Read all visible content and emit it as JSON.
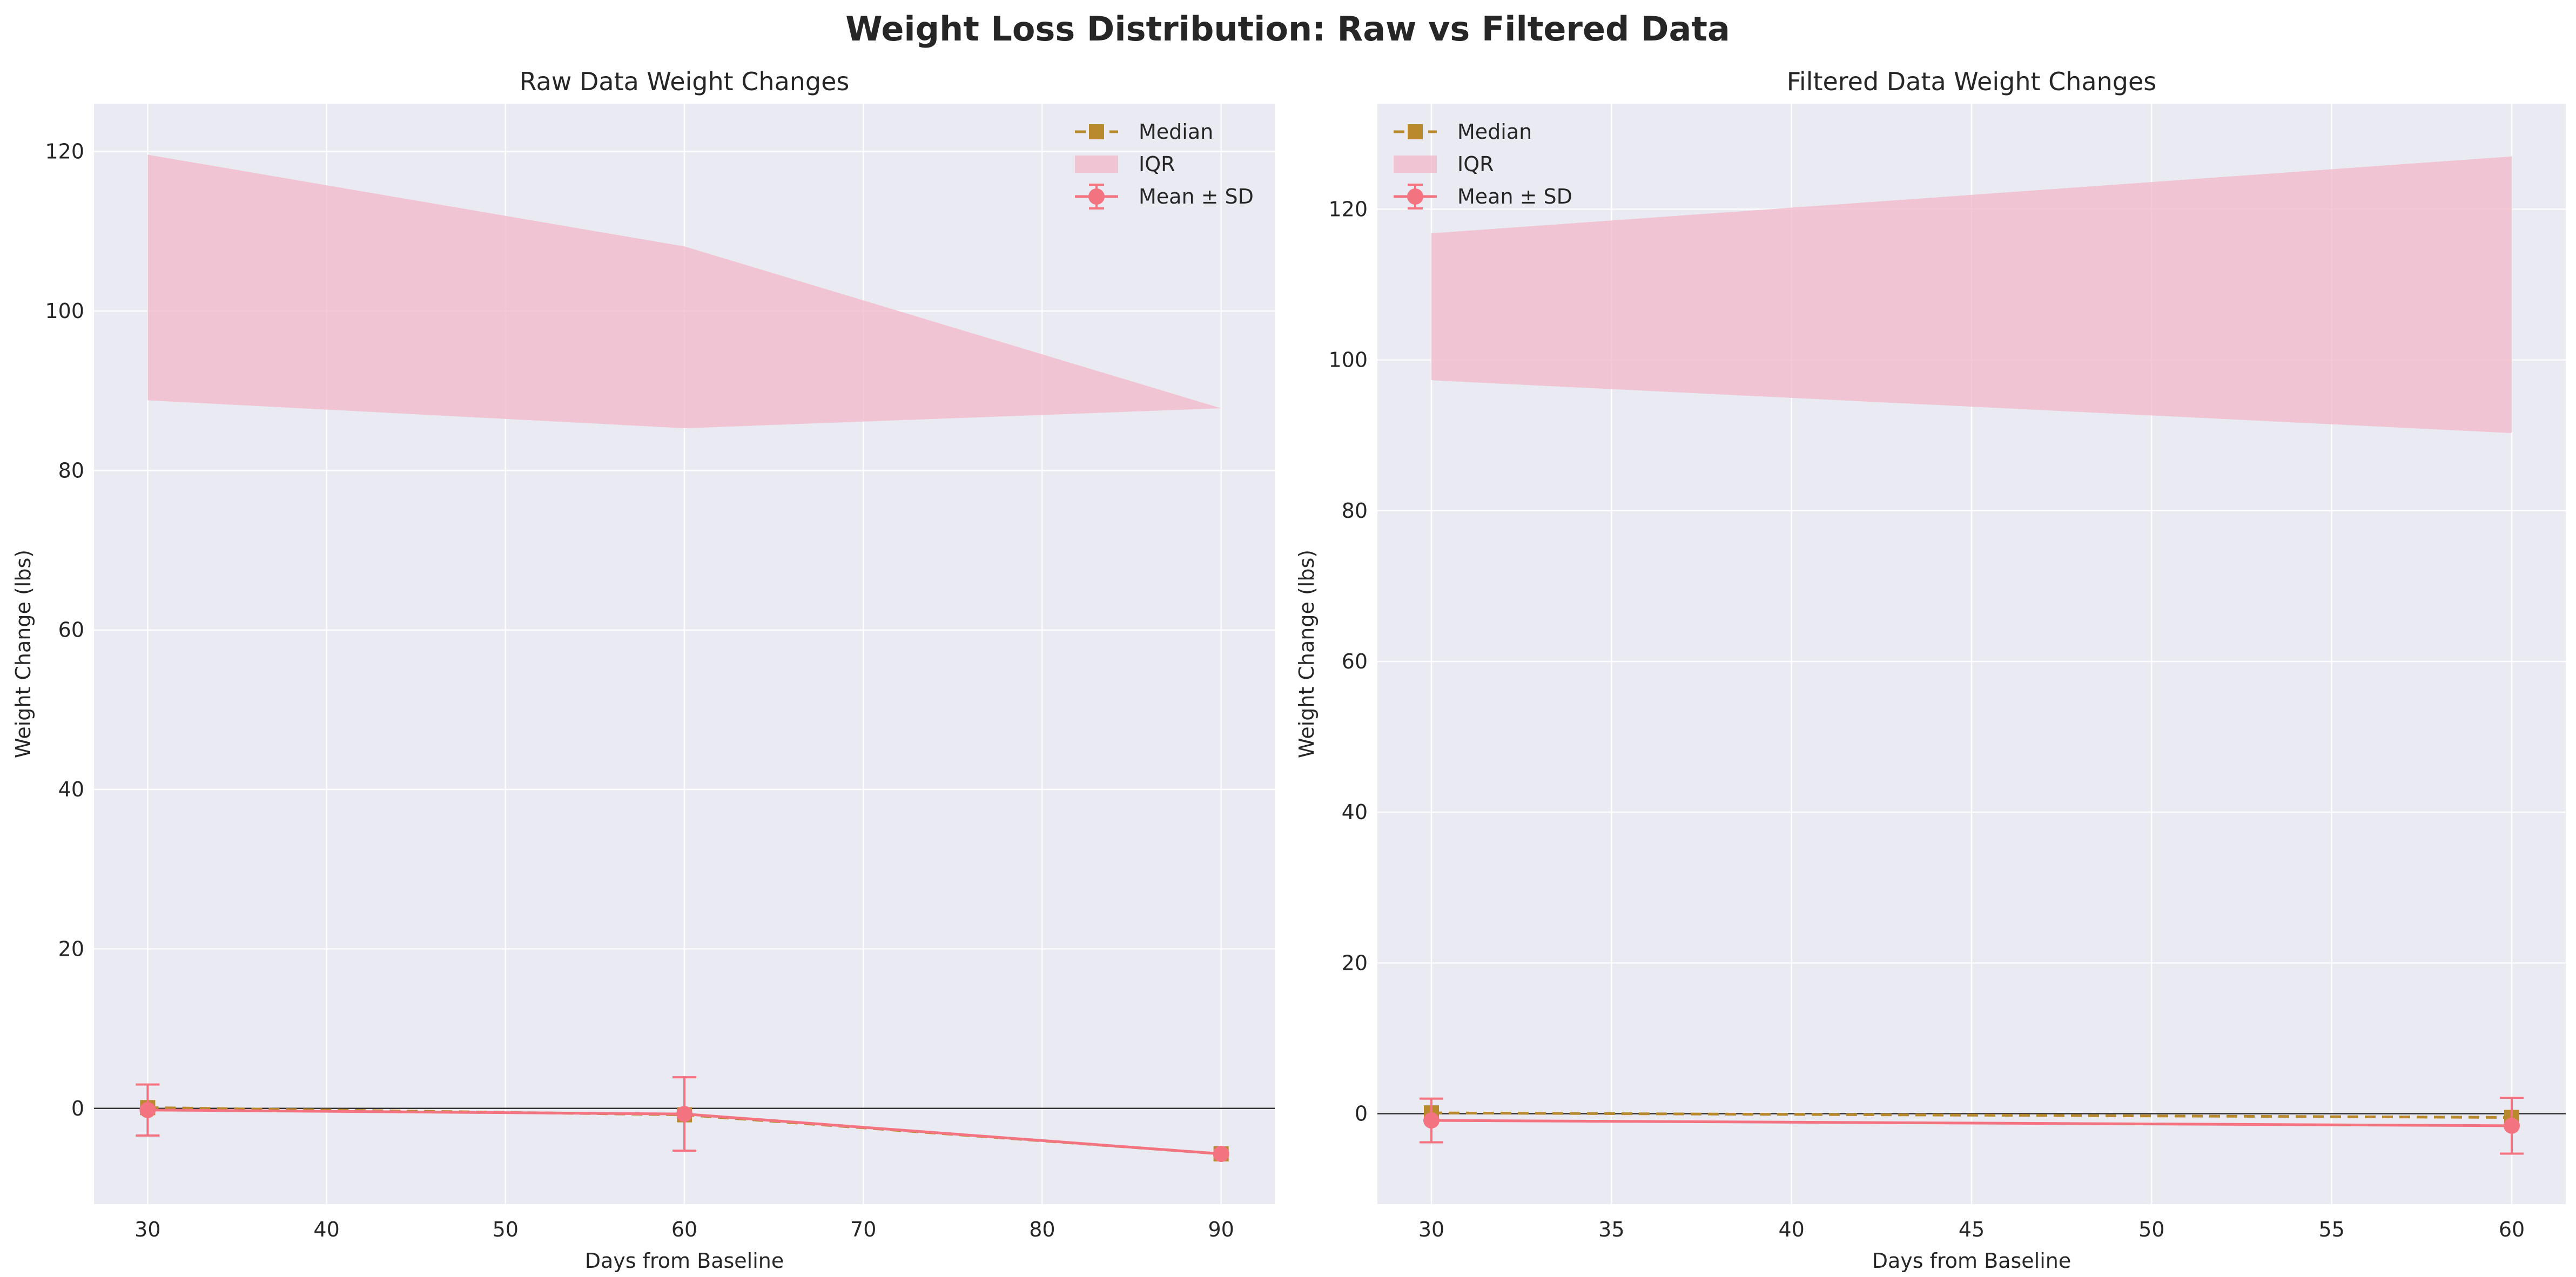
{
  "figure": {
    "title": "Weight Loss Distribution: Raw vs Filtered Data"
  },
  "colors": {
    "mean": "#f37381",
    "median": "#b88a2d",
    "iqr": "#f2b7c7",
    "plot_bg": "#eaeaf2",
    "grid": "#ffffff",
    "zero_line": "#000000",
    "text": "#262626"
  },
  "chart_data": [
    {
      "type": "line",
      "title": "Raw Data Weight Changes",
      "xlabel": "Days from Baseline",
      "ylabel": "Weight Change (lbs)",
      "xlim": [
        27,
        93
      ],
      "ylim": [
        -12,
        126
      ],
      "xticks": [
        30,
        40,
        50,
        60,
        70,
        80,
        90
      ],
      "yticks": [
        0,
        20,
        40,
        60,
        80,
        100,
        120
      ],
      "grid": true,
      "legend_position": "top-right",
      "legend": [
        "Median",
        "IQR",
        "Mean ± SD"
      ],
      "x": [
        30,
        60,
        90
      ],
      "mean": [
        -0.2,
        -0.7,
        -5.7
      ],
      "sd": [
        3.2,
        4.6,
        0
      ],
      "median": [
        0.1,
        -0.8,
        -5.7
      ],
      "iqr_low": [
        88.8,
        85.3,
        87.8
      ],
      "iqr_high": [
        119.6,
        108.1,
        87.8
      ],
      "zero_line": 0
    },
    {
      "type": "line",
      "title": "Filtered Data Weight Changes",
      "xlabel": "Days from Baseline",
      "ylabel": "Weight Change (lbs)",
      "xlim": [
        28.5,
        61.5
      ],
      "ylim": [
        -12,
        134
      ],
      "xticks": [
        30,
        35,
        40,
        45,
        50,
        55,
        60
      ],
      "yticks": [
        0,
        20,
        40,
        60,
        80,
        100,
        120
      ],
      "grid": true,
      "legend_position": "top-left",
      "legend": [
        "Median",
        "IQR",
        "Mean ± SD"
      ],
      "x": [
        30,
        60
      ],
      "mean": [
        -0.9,
        -1.6
      ],
      "sd": [
        2.9,
        3.7
      ],
      "median": [
        0.1,
        -0.5
      ],
      "iqr_low": [
        97.3,
        90.3
      ],
      "iqr_high": [
        116.8,
        127.0
      ],
      "zero_line": 0
    }
  ]
}
